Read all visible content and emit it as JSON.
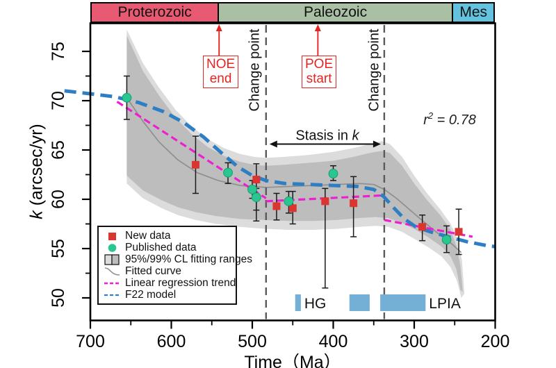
{
  "chart_data": {
    "type": "scatter",
    "xlabel": "Time（Ma）",
    "ylabel_italic": "k",
    "ylabel_rest": " (arcsec/yr)",
    "x_ticks": [
      700,
      600,
      500,
      400,
      300,
      200
    ],
    "x_minor_ticks": [
      650,
      550,
      450,
      350,
      250
    ],
    "y_ticks": [
      75,
      70,
      65,
      60,
      55,
      50
    ],
    "y_minor_ticks": [
      72.5,
      67.5,
      62.5,
      57.5,
      52.5
    ],
    "x_range_display": [
      700,
      200
    ],
    "y_axis_range": [
      50,
      75
    ],
    "r_squared": 0.78,
    "change_points_ma": [
      483,
      337
    ],
    "era_segments": [
      {
        "label": "Proterozoic",
        "t_start": 700,
        "t_end": 541,
        "color": "#e75a72"
      },
      {
        "label": "Paleozoic",
        "t_start": 541,
        "t_end": 252,
        "color": "#a9c0a4"
      },
      {
        "label": "Mes",
        "t_start": 252,
        "t_end": 200,
        "color": "#63c3df"
      }
    ],
    "new_data": [
      {
        "t": 570,
        "k": 63.5,
        "err_up": 2.9,
        "err_down": 2.9
      },
      {
        "t": 495,
        "k": 62.0,
        "err_up": 1.6,
        "err_down": 3.1
      },
      {
        "t": 470,
        "k": 59.3,
        "err_up": 1.3,
        "err_down": 1.4
      },
      {
        "t": 450,
        "k": 59.1,
        "err_up": 1.7,
        "err_down": 1.6
      },
      {
        "t": 410,
        "k": 59.8,
        "err_up": 1.3,
        "err_down": 8.8
      },
      {
        "t": 375,
        "k": 59.6,
        "err_up": 2.7,
        "err_down": 3.4
      },
      {
        "t": 290,
        "k": 57.2,
        "err_up": 1.2,
        "err_down": 1.4
      },
      {
        "t": 245,
        "k": 56.7,
        "err_up": 2.3,
        "err_down": 2.3
      }
    ],
    "published_data": [
      {
        "t": 655,
        "k": 70.3,
        "err_up": 2.2,
        "err_down": 2.2
      },
      {
        "t": 530,
        "k": 62.7,
        "err_up": 1.0,
        "err_down": 1.1
      },
      {
        "t": 500,
        "k": 61.0,
        "err_up": 0.9,
        "err_down": 0.9
      },
      {
        "t": 495,
        "k": 60.2,
        "err_up": 0.9,
        "err_down": 2.4
      },
      {
        "t": 455,
        "k": 59.8,
        "err_up": 1.0,
        "err_down": 1.2
      },
      {
        "t": 400,
        "k": 62.6,
        "err_up": 0.8,
        "err_down": 0.7
      },
      {
        "t": 260,
        "k": 55.9,
        "err_up": 1.4,
        "err_down": 1.3
      }
    ],
    "f22_model": [
      [
        732,
        71.0
      ],
      [
        700,
        70.7
      ],
      [
        670,
        70.4
      ],
      [
        640,
        69.8
      ],
      [
        610,
        68.9
      ],
      [
        585,
        67.8
      ],
      [
        560,
        66.3
      ],
      [
        538,
        64.7
      ],
      [
        518,
        63.3
      ],
      [
        500,
        62.4
      ],
      [
        483,
        61.9
      ],
      [
        460,
        61.6
      ],
      [
        430,
        61.5
      ],
      [
        400,
        61.4
      ],
      [
        370,
        61.3
      ],
      [
        350,
        61.0
      ],
      [
        338,
        60.3
      ],
      [
        326,
        59.2
      ],
      [
        312,
        58.0
      ],
      [
        298,
        57.2
      ],
      [
        280,
        56.7
      ],
      [
        258,
        56.2
      ],
      [
        235,
        55.7
      ],
      [
        210,
        55.3
      ],
      [
        200,
        55.2
      ]
    ],
    "fitted_curve": [
      [
        655,
        70.3
      ],
      [
        635,
        67.9
      ],
      [
        615,
        65.8
      ],
      [
        592,
        64.0
      ],
      [
        568,
        62.7
      ],
      [
        542,
        61.9
      ],
      [
        515,
        61.4
      ],
      [
        483,
        61.2
      ],
      [
        455,
        61.3
      ],
      [
        425,
        61.4
      ],
      [
        395,
        61.5
      ],
      [
        368,
        61.6
      ],
      [
        350,
        61.5
      ],
      [
        337,
        61.0
      ],
      [
        322,
        60.1
      ],
      [
        305,
        58.9
      ],
      [
        288,
        57.7
      ],
      [
        270,
        56.5
      ],
      [
        254,
        55.5
      ],
      [
        242,
        54.6
      ]
    ],
    "regression_segments": [
      [
        [
          667,
          69.9
        ],
        [
          483,
          60.1
        ]
      ],
      [
        [
          483,
          59.8
        ],
        [
          337,
          60.4
        ]
      ],
      [
        [
          337,
          57.9
        ],
        [
          228,
          56.2
        ]
      ]
    ],
    "bands": {
      "cl99": {
        "upper": [
          [
            655,
            77.2
          ],
          [
            635,
            73.8
          ],
          [
            615,
            71.3
          ],
          [
            595,
            69.1
          ],
          [
            575,
            67.4
          ],
          [
            555,
            66.1
          ],
          [
            535,
            65.2
          ],
          [
            515,
            64.6
          ],
          [
            498,
            64.3
          ],
          [
            483,
            64.2
          ],
          [
            460,
            64.3
          ],
          [
            430,
            64.5
          ],
          [
            400,
            64.8
          ],
          [
            375,
            65.2
          ],
          [
            355,
            65.6
          ],
          [
            340,
            65.9
          ],
          [
            330,
            65.6
          ],
          [
            315,
            64.3
          ],
          [
            300,
            62.4
          ],
          [
            285,
            60.7
          ],
          [
            268,
            59.0
          ],
          [
            255,
            57.5
          ],
          [
            247,
            56.0
          ],
          [
            241,
            53.8
          ],
          [
            238,
            50.4
          ]
        ],
        "lower": [
          [
            655,
            61.6
          ],
          [
            635,
            60.1
          ],
          [
            612,
            59.1
          ],
          [
            592,
            58.4
          ],
          [
            570,
            57.9
          ],
          [
            545,
            57.5
          ],
          [
            515,
            57.2
          ],
          [
            485,
            57.0
          ],
          [
            455,
            56.9
          ],
          [
            425,
            56.9
          ],
          [
            395,
            57.0
          ],
          [
            368,
            57.2
          ],
          [
            348,
            57.3
          ],
          [
            332,
            57.2
          ],
          [
            315,
            56.7
          ],
          [
            298,
            55.9
          ],
          [
            282,
            55.1
          ],
          [
            266,
            54.2
          ],
          [
            255,
            53.1
          ],
          [
            247,
            51.7
          ],
          [
            242,
            50.0
          ]
        ]
      },
      "cl95": {
        "upper": [
          [
            655,
            76.6
          ],
          [
            635,
            73.0
          ],
          [
            615,
            70.5
          ],
          [
            595,
            68.3
          ],
          [
            575,
            66.6
          ],
          [
            555,
            65.3
          ],
          [
            535,
            64.4
          ],
          [
            515,
            63.8
          ],
          [
            498,
            63.5
          ],
          [
            483,
            63.4
          ],
          [
            460,
            63.5
          ],
          [
            430,
            63.7
          ],
          [
            400,
            63.9
          ],
          [
            375,
            64.3
          ],
          [
            355,
            64.7
          ],
          [
            340,
            64.9
          ],
          [
            330,
            64.7
          ],
          [
            315,
            63.4
          ],
          [
            300,
            61.6
          ],
          [
            285,
            60.0
          ],
          [
            268,
            58.4
          ],
          [
            255,
            56.9
          ],
          [
            248,
            55.3
          ],
          [
            243,
            53.3
          ],
          [
            240,
            50.6
          ]
        ],
        "lower": [
          [
            655,
            62.4
          ],
          [
            635,
            60.9
          ],
          [
            612,
            59.9
          ],
          [
            592,
            59.2
          ],
          [
            570,
            58.7
          ],
          [
            545,
            58.3
          ],
          [
            515,
            58.0
          ],
          [
            485,
            57.9
          ],
          [
            455,
            57.8
          ],
          [
            425,
            57.8
          ],
          [
            395,
            57.9
          ],
          [
            368,
            58.1
          ],
          [
            348,
            58.2
          ],
          [
            332,
            58.1
          ],
          [
            315,
            57.6
          ],
          [
            298,
            56.9
          ],
          [
            282,
            56.1
          ],
          [
            266,
            55.2
          ],
          [
            255,
            54.2
          ],
          [
            248,
            52.9
          ],
          [
            243,
            50.8
          ]
        ]
      }
    },
    "glaciations": [
      {
        "label": "HG",
        "t_start": 447,
        "t_end": 440
      },
      {
        "label": "",
        "t_start": 380,
        "t_end": 355
      },
      {
        "label": "LPIA",
        "t_start": 342,
        "t_end": 286
      }
    ]
  },
  "annotations": {
    "noe_line1": "NOE",
    "noe_line2": "end",
    "poe_line1": "POE",
    "poe_line2": "start",
    "change_point_1": "Change point",
    "change_point_2": "Change point",
    "stasis_prefix": "Stasis in ",
    "stasis_italic": "k",
    "r2_prefix": "r",
    "r2_sup": "2",
    "r2_rest": " = 0.78"
  },
  "legend": {
    "items": [
      {
        "glyph": "square",
        "label": "New data"
      },
      {
        "glyph": "circle",
        "label": "Published data"
      },
      {
        "glyph": "band",
        "label": "95%/99% CL fitting ranges"
      },
      {
        "glyph": "curve",
        "label": "Fitted curve"
      },
      {
        "glyph": "dash-magenta",
        "label": "Linear regression trend"
      },
      {
        "glyph": "dash-blue",
        "label": "F22 model"
      }
    ]
  },
  "palette": {
    "new_data": "#db3530",
    "published_data": "#29c68f",
    "published_edge": "#14a071",
    "regression": "#ee1fd0",
    "f22": "#2e7ec3",
    "fitted": "#8f8f8f",
    "band95": "#bdbdbd",
    "band99": "#dcdcdc",
    "change_line": "#5a5a5a",
    "glaciation": "#74b0d6",
    "annotation_red": "#e52421",
    "axis": "#000000"
  }
}
